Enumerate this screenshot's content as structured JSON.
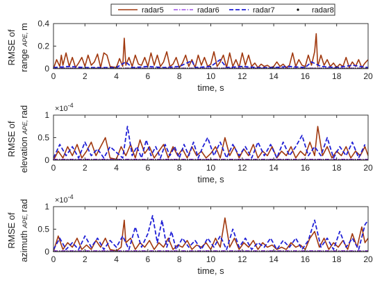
{
  "legend": {
    "placement": "top",
    "entries": [
      {
        "label": "radar5",
        "color": "#a0380e",
        "style": "solid"
      },
      {
        "label": "radar6",
        "color": "#8a2be2",
        "style": "dashdot"
      },
      {
        "label": "radar7",
        "color": "#1f1fd6",
        "style": "dashed"
      },
      {
        "label": "radar8",
        "color": "#000000",
        "style": "dotted"
      }
    ]
  },
  "chart_data": [
    {
      "type": "line",
      "ylabel_lines": [
        "RMSE of",
        "range",
        "APE,",
        "m"
      ],
      "xlabel": "time, s",
      "y_exponent": "",
      "xlim": [
        0,
        20
      ],
      "ylim": [
        0,
        0.4
      ],
      "xticks": [
        0,
        2,
        4,
        6,
        8,
        10,
        12,
        14,
        16,
        18,
        20
      ],
      "yticks": [
        "0",
        "0.2",
        "0.4"
      ],
      "series": [
        {
          "name": "radar5",
          "x": [
            0,
            0.2,
            0.4,
            0.5,
            0.6,
            0.8,
            1.0,
            1.2,
            1.4,
            1.6,
            1.8,
            2.0,
            2.2,
            2.4,
            2.6,
            2.8,
            3.0,
            3.2,
            3.4,
            3.6,
            4.0,
            4.2,
            4.4,
            4.5,
            4.6,
            4.8,
            5.0,
            5.2,
            5.4,
            5.6,
            5.8,
            6.0,
            6.2,
            6.4,
            6.6,
            6.8,
            7.0,
            7.2,
            7.4,
            7.6,
            7.8,
            8.0,
            8.2,
            8.4,
            8.6,
            8.8,
            9.0,
            9.2,
            9.4,
            9.6,
            9.8,
            10.0,
            10.2,
            10.4,
            10.6,
            10.8,
            11.0,
            11.2,
            11.4,
            11.6,
            11.8,
            12.0,
            12.2,
            12.4,
            12.6,
            12.8,
            13.0,
            13.2,
            13.4,
            13.6,
            13.8,
            14.0,
            14.2,
            14.4,
            14.6,
            14.8,
            15.0,
            15.2,
            15.4,
            15.6,
            15.8,
            16.0,
            16.2,
            16.4,
            16.6,
            16.7,
            16.8,
            17.0,
            17.2,
            17.4,
            17.6,
            17.8,
            18.0,
            18.2,
            18.4,
            18.6,
            18.8,
            19.0,
            19.2,
            19.4,
            19.6,
            19.8,
            20.0
          ],
          "y": [
            0,
            0.08,
            0.02,
            0.12,
            0.03,
            0.14,
            0.02,
            0.1,
            0.01,
            0.05,
            0.1,
            0.02,
            0.12,
            0.03,
            0.06,
            0.13,
            0.01,
            0.14,
            0.12,
            0.02,
            0.01,
            0.09,
            0.02,
            0.27,
            0.03,
            0.1,
            0.02,
            0.12,
            0.04,
            0.03,
            0.1,
            0.02,
            0.14,
            0.03,
            0.12,
            0.02,
            0.06,
            0.15,
            0.02,
            0.04,
            0.1,
            0.01,
            0.05,
            0.12,
            0.02,
            0.08,
            0.01,
            0.12,
            0.03,
            0.1,
            0.02,
            0.04,
            0.15,
            0.02,
            0.06,
            0.12,
            0.01,
            0.14,
            0.02,
            0.08,
            0.01,
            0.14,
            0.03,
            0.12,
            0.02,
            0.05,
            0.01,
            0.04,
            0.02,
            0.03,
            0.01,
            0.02,
            0.06,
            0.02,
            0.04,
            0.01,
            0.03,
            0.14,
            0.02,
            0.08,
            0.03,
            0.02,
            0.12,
            0.03,
            0.15,
            0.31,
            0.02,
            0.12,
            0.03,
            0.08,
            0.02,
            0.05,
            0.01,
            0.04,
            0.02,
            0.1,
            0.01,
            0.06,
            0.02,
            0.08,
            0.01,
            0.05,
            0.08
          ]
        },
        {
          "name": "radar6",
          "x": [
            0,
            1,
            2,
            3,
            4,
            5,
            6,
            7,
            8,
            9,
            10,
            11,
            12,
            13,
            14,
            15,
            16,
            17,
            18,
            19,
            20
          ],
          "y": [
            0.005,
            0.005,
            0.005,
            0.005,
            0.005,
            0.005,
            0.005,
            0.005,
            0.005,
            0.005,
            0.005,
            0.005,
            0.005,
            0.005,
            0.005,
            0.005,
            0.005,
            0.005,
            0.005,
            0.005,
            0.005
          ]
        },
        {
          "name": "radar7",
          "x": [
            0,
            1,
            2,
            3,
            4,
            4.6,
            5,
            6,
            7,
            8,
            8.8,
            9,
            10,
            10.6,
            11,
            12,
            13,
            14,
            15,
            16,
            16.4,
            17,
            18,
            19,
            20
          ],
          "y": [
            0.01,
            0.02,
            0.01,
            0.01,
            0.01,
            0.06,
            0.01,
            0.02,
            0.01,
            0.02,
            0.07,
            0.01,
            0.02,
            0.08,
            0.01,
            0.02,
            0.01,
            0.01,
            0.02,
            0.01,
            0.06,
            0.02,
            0.01,
            0.03,
            0.01
          ]
        },
        {
          "name": "radar8",
          "x": [
            0,
            2,
            4,
            6,
            8,
            10,
            12,
            14,
            16,
            18,
            20
          ],
          "y": [
            0,
            0,
            0,
            0,
            0,
            0,
            0,
            0,
            0,
            0,
            0
          ]
        }
      ]
    },
    {
      "type": "line",
      "ylabel_lines": [
        "RMSE of",
        "elevation",
        "APE,",
        "rad"
      ],
      "xlabel": "time, s",
      "y_exponent": "×10",
      "y_exponent_power": "-4",
      "xlim": [
        0,
        20
      ],
      "ylim": [
        0,
        1
      ],
      "xticks": [
        0,
        2,
        4,
        6,
        8,
        10,
        12,
        14,
        16,
        18,
        20
      ],
      "yticks": [
        "0",
        "0.5",
        "1"
      ],
      "series": [
        {
          "name": "radar5",
          "x": [
            0,
            0.3,
            0.6,
            0.9,
            1.2,
            1.5,
            1.8,
            2.1,
            2.4,
            2.7,
            3.0,
            3.3,
            3.6,
            4.0,
            4.3,
            4.6,
            4.9,
            5.2,
            5.5,
            5.8,
            6.1,
            6.4,
            6.7,
            7.0,
            7.3,
            7.6,
            7.9,
            8.2,
            8.5,
            8.8,
            9.1,
            9.4,
            9.7,
            10.0,
            10.3,
            10.6,
            10.9,
            11.2,
            11.5,
            11.8,
            12.1,
            12.4,
            12.7,
            13.0,
            13.3,
            13.6,
            13.9,
            14.2,
            14.5,
            14.8,
            15.1,
            15.4,
            15.7,
            16.0,
            16.3,
            16.6,
            16.8,
            17.1,
            17.4,
            17.7,
            18.0,
            18.3,
            18.6,
            18.9,
            19.2,
            19.5,
            19.8,
            20.0
          ],
          "y": [
            0,
            0.2,
            0.05,
            0.3,
            0.1,
            0.35,
            0.05,
            0.2,
            0.4,
            0.1,
            0.3,
            0.5,
            0.05,
            0.02,
            0.3,
            0.1,
            0.35,
            0.05,
            0.45,
            0.15,
            0.3,
            0.05,
            0.2,
            0.35,
            0.05,
            0.3,
            0.1,
            0.25,
            0.05,
            0.3,
            0.1,
            0.2,
            0.05,
            0.15,
            0.3,
            0.05,
            0.5,
            0.1,
            0.3,
            0.05,
            0.25,
            0.1,
            0.35,
            0.05,
            0.2,
            0.1,
            0.3,
            0.05,
            0.2,
            0.1,
            0.3,
            0.05,
            0.2,
            0.1,
            0.4,
            0.1,
            0.75,
            0.1,
            0.3,
            0.05,
            0.2,
            0.1,
            0.3,
            0.05,
            0.2,
            0.1,
            0.3,
            0.1
          ]
        },
        {
          "name": "radar6",
          "x": [
            0,
            1,
            2,
            3,
            4,
            5,
            6,
            7,
            8,
            9,
            10,
            11,
            12,
            13,
            14,
            15,
            16,
            17,
            18,
            19,
            20
          ],
          "y": [
            0.02,
            0.02,
            0.02,
            0.02,
            0.02,
            0.02,
            0.02,
            0.02,
            0.02,
            0.02,
            0.02,
            0.02,
            0.02,
            0.02,
            0.02,
            0.02,
            0.02,
            0.02,
            0.02,
            0.02,
            0.02
          ]
        },
        {
          "name": "radar7",
          "x": [
            0,
            0.4,
            0.8,
            1.2,
            1.6,
            2.0,
            2.4,
            2.8,
            3.2,
            3.6,
            4.4,
            4.7,
            5.0,
            5.3,
            5.6,
            5.9,
            6.2,
            6.5,
            6.8,
            7.1,
            7.4,
            7.7,
            8.0,
            8.3,
            8.6,
            8.9,
            9.2,
            9.5,
            9.8,
            10.2,
            10.6,
            11.0,
            11.4,
            11.8,
            12.2,
            12.6,
            13.0,
            13.4,
            13.8,
            14.2,
            14.6,
            15.0,
            15.4,
            15.8,
            16.2,
            16.6,
            17.0,
            17.4,
            17.8,
            18.2,
            18.6,
            19.0,
            19.4,
            19.8
          ],
          "y": [
            0.05,
            0.35,
            0.1,
            0.3,
            0.05,
            0.4,
            0.1,
            0.25,
            0.05,
            0.3,
            0.05,
            0.75,
            0.1,
            0.3,
            0.05,
            0.45,
            0.1,
            0.3,
            0.05,
            0.35,
            0.1,
            0.3,
            0.05,
            0.35,
            0.1,
            0.4,
            0.05,
            0.3,
            0.5,
            0.1,
            0.4,
            0.05,
            0.35,
            0.1,
            0.3,
            0.05,
            0.4,
            0.1,
            0.35,
            0.05,
            0.4,
            0.1,
            0.3,
            0.55,
            0.1,
            0.3,
            0.1,
            0.5,
            0.05,
            0.3,
            0.1,
            0.4,
            0.05,
            0.35
          ]
        },
        {
          "name": "radar8",
          "x": [
            0,
            2,
            4,
            6,
            8,
            10,
            12,
            14,
            16,
            18,
            20
          ],
          "y": [
            0,
            0,
            0,
            0,
            0,
            0,
            0,
            0,
            0,
            0,
            0
          ]
        }
      ]
    },
    {
      "type": "line",
      "ylabel_lines": [
        "RMSE of",
        "azimuth",
        "APE,",
        "rad"
      ],
      "xlabel": "time, s",
      "y_exponent": "×10",
      "y_exponent_power": "-4",
      "xlim": [
        0,
        20
      ],
      "ylim": [
        0,
        1
      ],
      "xticks": [
        0,
        2,
        4,
        6,
        8,
        10,
        12,
        14,
        16,
        18,
        20
      ],
      "yticks": [
        "0",
        "0.5",
        "1"
      ],
      "series": [
        {
          "name": "radar5",
          "x": [
            0,
            0.3,
            0.6,
            0.9,
            1.2,
            1.5,
            1.8,
            2.1,
            2.4,
            2.7,
            3.0,
            3.3,
            3.6,
            4.0,
            4.3,
            4.5,
            4.6,
            4.9,
            5.2,
            5.5,
            5.8,
            6.1,
            6.4,
            6.7,
            7.0,
            7.3,
            7.6,
            7.9,
            8.2,
            8.5,
            8.8,
            9.1,
            9.4,
            9.7,
            10.0,
            10.3,
            10.6,
            10.9,
            11.2,
            11.5,
            11.8,
            12.1,
            12.4,
            12.7,
            13.0,
            13.3,
            13.6,
            13.9,
            14.2,
            14.5,
            14.8,
            15.1,
            15.4,
            15.7,
            16.0,
            16.3,
            16.6,
            16.9,
            17.2,
            17.5,
            17.8,
            18.1,
            18.4,
            18.7,
            19.0,
            19.3,
            19.6,
            19.8,
            20.0
          ],
          "y": [
            0,
            0.35,
            0.05,
            0.2,
            0.1,
            0.3,
            0.05,
            0.15,
            0.05,
            0.25,
            0.1,
            0.3,
            0.05,
            0.02,
            0.1,
            0.7,
            0.2,
            0.3,
            0.05,
            0.2,
            0.1,
            0.25,
            0.05,
            0.2,
            0.1,
            0.3,
            0.05,
            0.15,
            0.1,
            0.25,
            0.05,
            0.15,
            0.1,
            0.2,
            0.05,
            0.3,
            0.1,
            0.75,
            0.1,
            0.3,
            0.05,
            0.2,
            0.1,
            0.25,
            0.05,
            0.2,
            0.1,
            0.15,
            0.05,
            0.1,
            0.05,
            0.2,
            0.1,
            0.15,
            0.05,
            0.3,
            0.45,
            0.1,
            0.3,
            0.05,
            0.2,
            0.1,
            0.25,
            0.05,
            0.4,
            0.1,
            0.55,
            0.2,
            0.3
          ]
        },
        {
          "name": "radar6",
          "x": [
            0,
            1,
            2,
            3,
            4,
            5,
            6,
            7,
            8,
            9,
            10,
            11,
            12,
            13,
            14,
            15,
            16,
            17,
            18,
            19,
            20
          ],
          "y": [
            0.02,
            0.02,
            0.02,
            0.02,
            0.02,
            0.02,
            0.02,
            0.02,
            0.02,
            0.02,
            0.02,
            0.02,
            0.02,
            0.02,
            0.02,
            0.02,
            0.02,
            0.02,
            0.02,
            0.02,
            0.02
          ]
        },
        {
          "name": "radar7",
          "x": [
            0,
            0.4,
            0.8,
            1.2,
            1.6,
            2.0,
            2.4,
            2.8,
            3.2,
            3.6,
            4.0,
            4.4,
            4.8,
            5.2,
            5.6,
            6.0,
            6.3,
            6.6,
            6.9,
            7.2,
            7.5,
            7.8,
            8.2,
            8.6,
            9.0,
            9.4,
            9.8,
            10.2,
            10.6,
            11.0,
            11.4,
            11.8,
            12.2,
            12.6,
            13.0,
            13.4,
            13.8,
            14.2,
            14.6,
            15.0,
            15.4,
            15.8,
            16.2,
            16.6,
            17.0,
            17.4,
            17.8,
            18.2,
            18.6,
            19.0,
            19.4,
            19.8,
            20.0
          ],
          "y": [
            0.05,
            0.3,
            0.05,
            0.2,
            0.05,
            0.35,
            0.1,
            0.3,
            0.05,
            0.25,
            0.1,
            0.35,
            0.05,
            0.55,
            0.1,
            0.4,
            0.8,
            0.2,
            0.7,
            0.1,
            0.45,
            0.05,
            0.3,
            0.1,
            0.25,
            0.05,
            0.3,
            0.1,
            0.35,
            0.05,
            0.5,
            0.1,
            0.3,
            0.05,
            0.2,
            0.1,
            0.3,
            0.05,
            0.25,
            0.1,
            0.3,
            0.05,
            0.25,
            0.7,
            0.1,
            0.3,
            0.05,
            0.45,
            0.1,
            0.3,
            0.05,
            0.6,
            0.7
          ]
        },
        {
          "name": "radar8",
          "x": [
            0,
            2,
            4,
            6,
            8,
            10,
            12,
            14,
            16,
            18,
            20
          ],
          "y": [
            0,
            0,
            0,
            0,
            0,
            0,
            0,
            0,
            0,
            0,
            0
          ]
        }
      ]
    }
  ]
}
